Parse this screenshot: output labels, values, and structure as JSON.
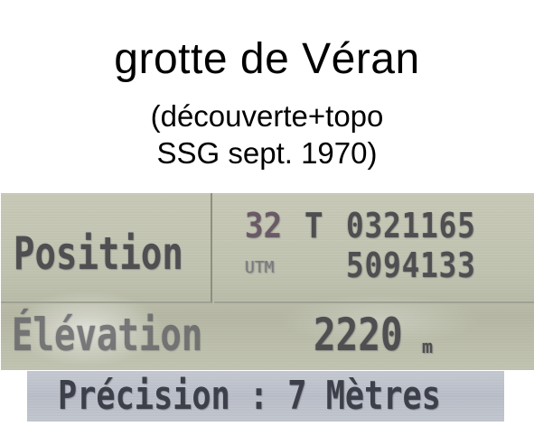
{
  "caption": {
    "title": "grotte de Véran",
    "line1": "(découverte+topo",
    "line2": "SSG sept. 1970)"
  },
  "gps_display": {
    "position_label": "Position",
    "utm_zone_number": "32",
    "utm_zone_letter": "T",
    "easting": "0321165",
    "utm_label": "UTM",
    "northing": "5094133",
    "elevation_label": "Élévation",
    "elevation_value": "2220",
    "elevation_unit": "m"
  },
  "precision_strip": {
    "text": "Précision : 7 Mètres"
  },
  "colors": {
    "lcd_background": "#c4c6b4",
    "lcd_text": "#4f4f52",
    "zone_number": "#6a5a66",
    "strip_background": "#c0c4cd"
  }
}
